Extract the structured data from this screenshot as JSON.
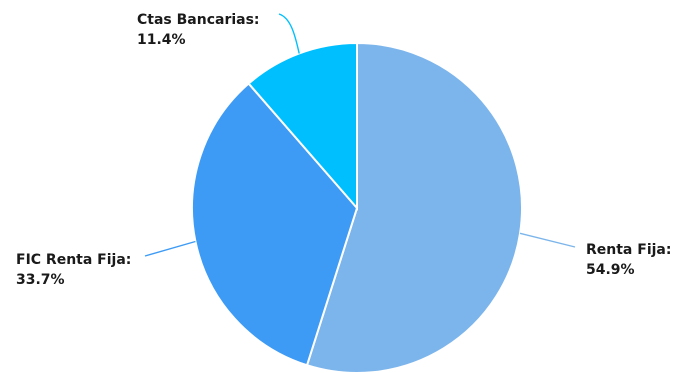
{
  "chart_data": {
    "type": "pie",
    "title": "",
    "slices": [
      {
        "label": "Renta Fija:",
        "percent_label": "54.9%",
        "value": 54.9,
        "color": "#7cb5ec"
      },
      {
        "label": "FIC Renta Fija:",
        "percent_label": "33.7%",
        "value": 33.7,
        "color": "#3d9bf5"
      },
      {
        "label": "Ctas Bancarias:",
        "percent_label": "11.4%",
        "value": 11.4,
        "color": "#00bfff"
      }
    ],
    "start": "top",
    "direction": "clockwise",
    "legend": "none"
  }
}
